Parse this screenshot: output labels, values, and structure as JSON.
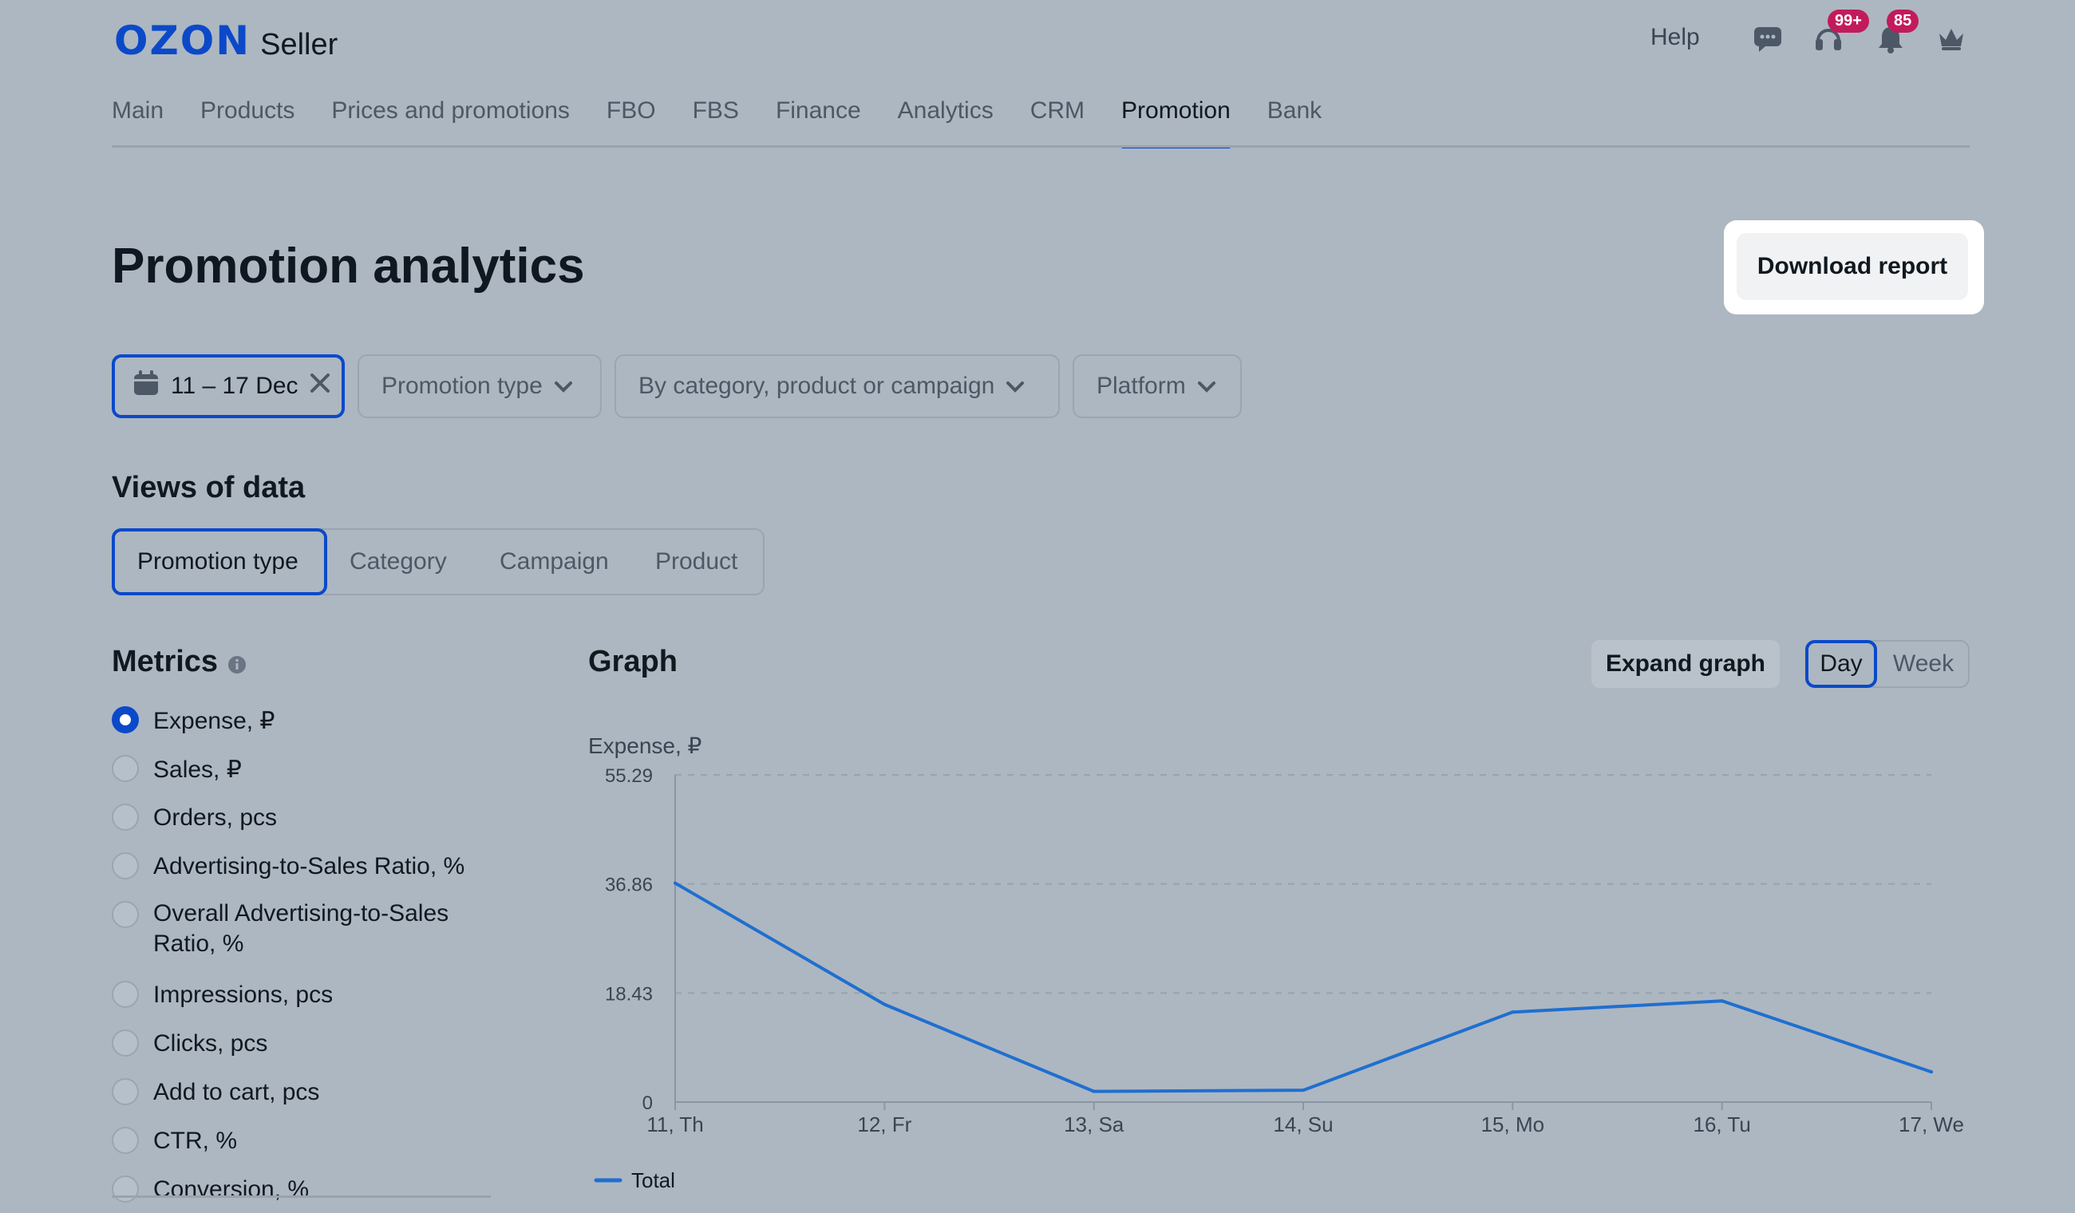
{
  "header": {
    "logo_brand": "OZON",
    "logo_product": "Seller",
    "help_label": "Help",
    "icons": [
      "chat-icon",
      "support-icon",
      "bell-icon",
      "crown-icon"
    ],
    "support_badge": "99+",
    "notifications_badge": "85"
  },
  "nav": {
    "items": [
      "Main",
      "Products",
      "Prices and promotions",
      "FBO",
      "FBS",
      "Finance",
      "Analytics",
      "CRM",
      "Promotion",
      "Bank"
    ],
    "active": "Promotion"
  },
  "page": {
    "title": "Promotion analytics",
    "download_label": "Download report"
  },
  "filters": {
    "date": "11 – 17 Dec",
    "promotion_type": "Promotion type",
    "search": "By category, product or campaign",
    "platform": "Platform"
  },
  "views": {
    "title": "Views of data",
    "tabs": [
      "Promotion type",
      "Category",
      "Campaign",
      "Product"
    ],
    "active": "Promotion type"
  },
  "metrics": {
    "title": "Metrics",
    "selected": "Expense, ₽",
    "items": [
      "Expense, ₽",
      "Sales, ₽",
      "Orders, pcs",
      "Advertising-to-Sales Ratio, %",
      "Overall Advertising-to-Sales Ratio, %",
      "Impressions, pcs",
      "Clicks, pcs",
      "Add to cart, pcs",
      "CTR, %",
      "Conversion, %"
    ]
  },
  "graph": {
    "title": "Graph",
    "expand_label": "Expand graph",
    "period_options": [
      "Day",
      "Week"
    ],
    "period_selected": "Day"
  },
  "colors": {
    "accent": "#0b49c9",
    "line": "#1f6fd0",
    "badge": "#c21b5b",
    "background": "#adb7c1"
  },
  "chart_data": {
    "type": "line",
    "ylabel": "Expense, ₽",
    "categories": [
      "11, Th",
      "12, Fr",
      "13, Sa",
      "14, Su",
      "15, Mo",
      "16, Tu",
      "17, We"
    ],
    "yticks": [
      "0",
      "18.43",
      "36.86",
      "55.29"
    ],
    "ylim": [
      0,
      55.29
    ],
    "series": [
      {
        "name": "Total",
        "values": [
          37.0,
          16.5,
          1.8,
          2.0,
          15.2,
          17.1,
          5.1
        ]
      }
    ],
    "grid": true,
    "legend": "bottom-left"
  }
}
